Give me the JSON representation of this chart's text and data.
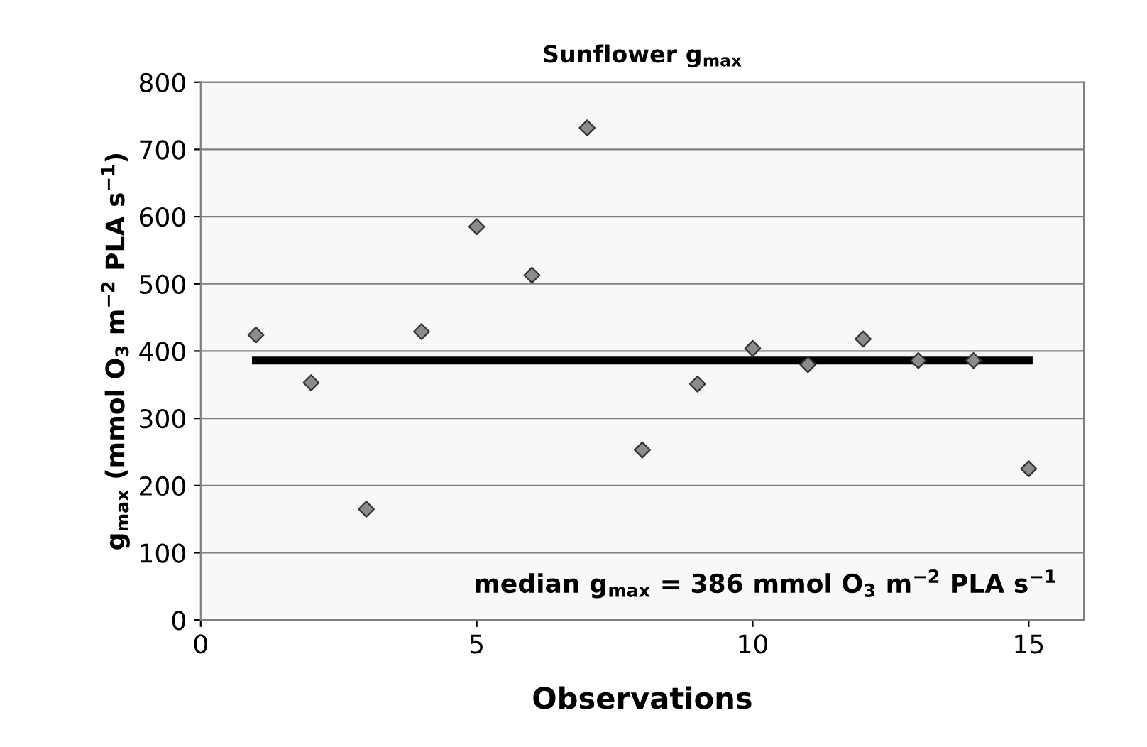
{
  "chart_data": {
    "type": "scatter",
    "title": "Sunflower g$_{max}$",
    "xlabel": "Observations",
    "ylabel": "g$_{max}$ (mmol O$_{3}$ m$^{−2}$ PLA s$^{−1}$)",
    "annotations": [
      "median g$_{max}$ = 386 mmol O$_{3}$ m$^{−2}$ PLA s$^{−1}$"
    ],
    "series": [
      {
        "color": "#8c8c8c",
        "marker": "diamond",
        "x": [
          1,
          2,
          3,
          4,
          5,
          6,
          7,
          8,
          9,
          10,
          11,
          12,
          13,
          14,
          15
        ],
        "values": [
          424,
          353,
          165,
          429,
          585,
          513,
          732,
          253,
          351,
          404,
          380,
          418,
          386,
          386,
          225
        ]
      },
      {
        "type": "line",
        "color": "#000000",
        "marker": "none",
        "line_style": "solid",
        "x": [
          1,
          15
        ],
        "values": [
          386,
          386
        ]
      }
    ],
    "xlim": [
      0,
      16
    ],
    "xticks": [
      0,
      5,
      10,
      15
    ],
    "ylim": [
      0,
      800
    ],
    "yticks": [
      0,
      100,
      200,
      300,
      400,
      500,
      600,
      700,
      800
    ],
    "grid": "y",
    "legend": false
  }
}
